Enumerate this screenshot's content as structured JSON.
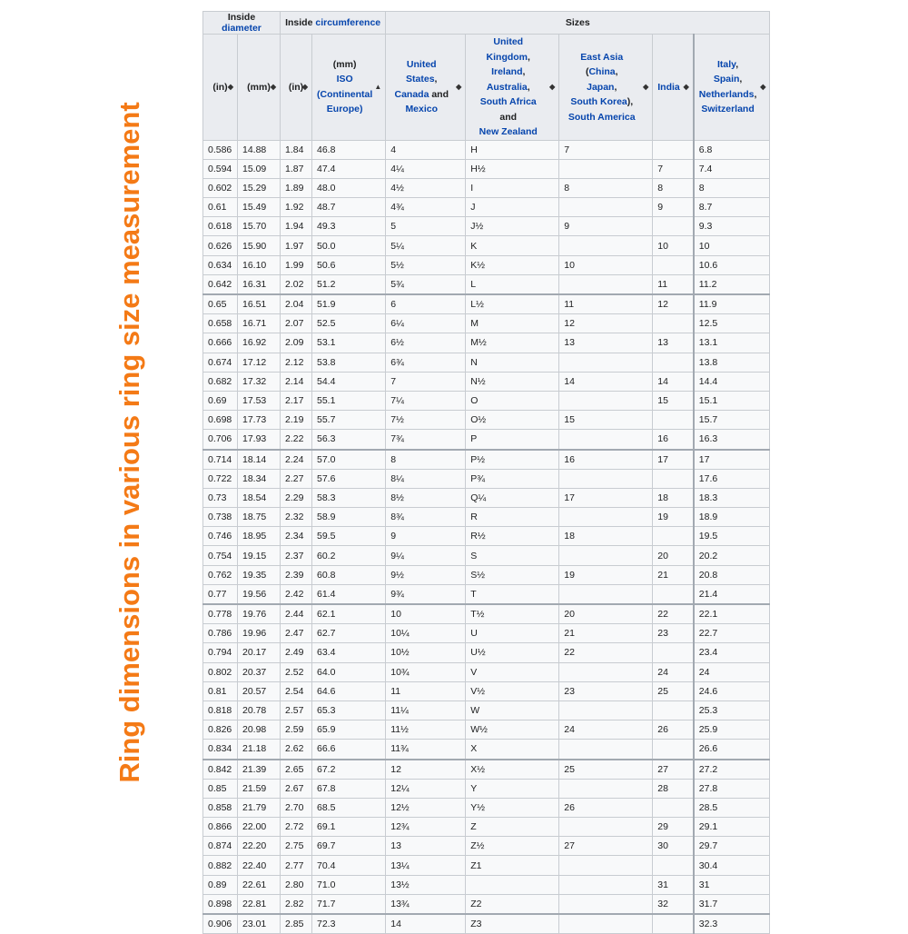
{
  "side_title": "Ring dimensions in various ring size measurement",
  "header": {
    "group1": {
      "prefix": "Inside ",
      "link": "diameter"
    },
    "group2": {
      "prefix": "Inside ",
      "link": "circumference"
    },
    "group3": "Sizes",
    "cols": [
      {
        "text": "(in)"
      },
      {
        "text": "(mm)"
      },
      {
        "text": "(in)"
      },
      {
        "line1": "(mm)",
        "link1": "ISO",
        "link2": "(Continental Europe)"
      },
      {
        "link1": "United States",
        "t1": ",",
        "link2": "Canada",
        "t2": " and ",
        "link3": "Mexico"
      },
      {
        "link1": "United Kingdom",
        "t1": ",",
        "link2": "Ireland",
        "t2": ",",
        "link3": "Australia",
        "t3": ",",
        "link4": "South Africa",
        "t4": " and ",
        "link5": "New Zealand"
      },
      {
        "link1": "East Asia",
        "t1": " (",
        "link2": "China",
        "t2": ",",
        "link3": "Japan",
        "t3": ",",
        "link4": "South Korea",
        "t4": "),",
        "link5": "South America"
      },
      {
        "link1": "India"
      },
      {
        "link1": "Italy",
        "t1": ",",
        "link2": "Spain",
        "t2": ",",
        "link3": "Netherlands",
        "t3": ",",
        "link4": "Switzerland"
      }
    ],
    "sort_icons": "sort-both-icon; ISO column sort-ascending-icon"
  },
  "rows": [
    [
      "0.586",
      "14.88",
      "1.84",
      "46.8",
      "4",
      "H",
      "7",
      "",
      "6.8"
    ],
    [
      "0.594",
      "15.09",
      "1.87",
      "47.4",
      "4¼",
      "H½",
      "",
      "7",
      "7.4"
    ],
    [
      "0.602",
      "15.29",
      "1.89",
      "48.0",
      "4½",
      "I",
      "8",
      "8",
      "8"
    ],
    [
      "0.61",
      "15.49",
      "1.92",
      "48.7",
      "4¾",
      "J",
      "",
      "9",
      "8.7"
    ],
    [
      "0.618",
      "15.70",
      "1.94",
      "49.3",
      "5",
      "J½",
      "9",
      "",
      "9.3"
    ],
    [
      "0.626",
      "15.90",
      "1.97",
      "50.0",
      "5¼",
      "K",
      "",
      "10",
      "10"
    ],
    [
      "0.634",
      "16.10",
      "1.99",
      "50.6",
      "5½",
      "K½",
      "10",
      "",
      "10.6"
    ],
    [
      "0.642",
      "16.31",
      "2.02",
      "51.2",
      "5¾",
      "L",
      "",
      "11",
      "11.2"
    ],
    [
      "0.65",
      "16.51",
      "2.04",
      "51.9",
      "6",
      "L½",
      "11",
      "12",
      "11.9"
    ],
    [
      "0.658",
      "16.71",
      "2.07",
      "52.5",
      "6¼",
      "M",
      "12",
      "",
      "12.5"
    ],
    [
      "0.666",
      "16.92",
      "2.09",
      "53.1",
      "6½",
      "M½",
      "13",
      "13",
      "13.1"
    ],
    [
      "0.674",
      "17.12",
      "2.12",
      "53.8",
      "6¾",
      "N",
      "",
      "",
      "13.8"
    ],
    [
      "0.682",
      "17.32",
      "2.14",
      "54.4",
      "7",
      "N½",
      "14",
      "14",
      "14.4"
    ],
    [
      "0.69",
      "17.53",
      "2.17",
      "55.1",
      "7¼",
      "O",
      "",
      "15",
      "15.1"
    ],
    [
      "0.698",
      "17.73",
      "2.19",
      "55.7",
      "7½",
      "O½",
      "15",
      "",
      "15.7"
    ],
    [
      "0.706",
      "17.93",
      "2.22",
      "56.3",
      "7¾",
      "P",
      "",
      "16",
      "16.3"
    ],
    [
      "0.714",
      "18.14",
      "2.24",
      "57.0",
      "8",
      "P½",
      "16",
      "17",
      "17"
    ],
    [
      "0.722",
      "18.34",
      "2.27",
      "57.6",
      "8¼",
      "P¾",
      "",
      "",
      "17.6"
    ],
    [
      "0.73",
      "18.54",
      "2.29",
      "58.3",
      "8½",
      "Q¼",
      "17",
      "18",
      "18.3"
    ],
    [
      "0.738",
      "18.75",
      "2.32",
      "58.9",
      "8¾",
      "R",
      "",
      "19",
      "18.9"
    ],
    [
      "0.746",
      "18.95",
      "2.34",
      "59.5",
      "9",
      "R½",
      "18",
      "",
      "19.5"
    ],
    [
      "0.754",
      "19.15",
      "2.37",
      "60.2",
      "9¼",
      "S",
      "",
      "20",
      "20.2"
    ],
    [
      "0.762",
      "19.35",
      "2.39",
      "60.8",
      "9½",
      "S½",
      "19",
      "21",
      "20.8"
    ],
    [
      "0.77",
      "19.56",
      "2.42",
      "61.4",
      "9¾",
      "T",
      "",
      "",
      "21.4"
    ],
    [
      "0.778",
      "19.76",
      "2.44",
      "62.1",
      "10",
      "T½",
      "20",
      "22",
      "22.1"
    ],
    [
      "0.786",
      "19.96",
      "2.47",
      "62.7",
      "10¼",
      "U",
      "21",
      "23",
      "22.7"
    ],
    [
      "0.794",
      "20.17",
      "2.49",
      "63.4",
      "10½",
      "U½",
      "22",
      "",
      "23.4"
    ],
    [
      "0.802",
      "20.37",
      "2.52",
      "64.0",
      "10¾",
      "V",
      "",
      "24",
      "24"
    ],
    [
      "0.81",
      "20.57",
      "2.54",
      "64.6",
      "11",
      "V½",
      "23",
      "25",
      "24.6"
    ],
    [
      "0.818",
      "20.78",
      "2.57",
      "65.3",
      "11¼",
      "W",
      "",
      "",
      "25.3"
    ],
    [
      "0.826",
      "20.98",
      "2.59",
      "65.9",
      "11½",
      "W½",
      "24",
      "26",
      "25.9"
    ],
    [
      "0.834",
      "21.18",
      "2.62",
      "66.6",
      "11¾",
      "X",
      "",
      "",
      "26.6"
    ],
    [
      "0.842",
      "21.39",
      "2.65",
      "67.2",
      "12",
      "X½",
      "25",
      "27",
      "27.2"
    ],
    [
      "0.85",
      "21.59",
      "2.67",
      "67.8",
      "12¼",
      "Y",
      "",
      "28",
      "27.8"
    ],
    [
      "0.858",
      "21.79",
      "2.70",
      "68.5",
      "12½",
      "Y½",
      "26",
      "",
      "28.5"
    ],
    [
      "0.866",
      "22.00",
      "2.72",
      "69.1",
      "12¾",
      "Z",
      "",
      "29",
      "29.1"
    ],
    [
      "0.874",
      "22.20",
      "2.75",
      "69.7",
      "13",
      "Z½",
      "27",
      "30",
      "29.7"
    ],
    [
      "0.882",
      "22.40",
      "2.77",
      "70.4",
      "13¼",
      "Z1",
      "",
      "",
      "30.4"
    ],
    [
      "0.89",
      "22.61",
      "2.80",
      "71.0",
      "13½",
      "",
      "",
      "31",
      "31"
    ],
    [
      "0.898",
      "22.81",
      "2.82",
      "71.7",
      "13¾",
      "Z2",
      "",
      "32",
      "31.7"
    ],
    [
      "0.906",
      "23.01",
      "2.85",
      "72.3",
      "14",
      "Z3",
      "",
      "",
      "32.3"
    ]
  ]
}
